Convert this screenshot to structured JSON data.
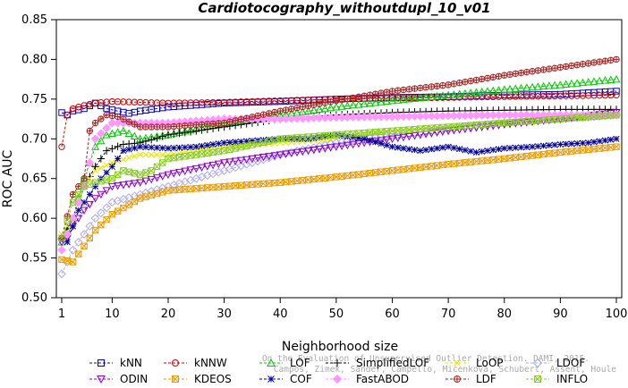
{
  "chart_data": {
    "type": "line",
    "title": "Cardiotocography_withoutdupl_10_v01",
    "xlabel": "Neighborhood size",
    "ylabel": "ROC AUC",
    "xlim": [
      1,
      100
    ],
    "ylim": [
      0.5,
      0.85
    ],
    "xticks": [
      "1",
      "10",
      "20",
      "30",
      "40",
      "50",
      "60",
      "70",
      "80",
      "90",
      "100"
    ],
    "yticks": [
      "0.50",
      "0.55",
      "0.60",
      "0.65",
      "0.70",
      "0.75",
      "0.80",
      "0.85"
    ],
    "grid": false,
    "legend_position": "bottom",
    "watermark": [
      "Campos, Zimek, Sander, Campello, Micenkova, Schubert, Assent, Houle",
      "On the Evaluation of Unsupervised Outlier Detection. DAMI, 2015."
    ],
    "series": [
      {
        "name": "kNN",
        "color": "#0000cc",
        "marker": "square",
        "points": [
          [
            1,
            0.733
          ],
          [
            2,
            0.73
          ],
          [
            3,
            0.735
          ],
          [
            5,
            0.738
          ],
          [
            7,
            0.745
          ],
          [
            9,
            0.738
          ],
          [
            11,
            0.735
          ],
          [
            13,
            0.732
          ],
          [
            15,
            0.735
          ],
          [
            20,
            0.74
          ],
          [
            30,
            0.745
          ],
          [
            40,
            0.747
          ],
          [
            50,
            0.75
          ],
          [
            60,
            0.752
          ],
          [
            70,
            0.753
          ],
          [
            80,
            0.755
          ],
          [
            90,
            0.756
          ],
          [
            100,
            0.76
          ]
        ]
      },
      {
        "name": "kNNW",
        "color": "#cc0000",
        "marker": "circle",
        "points": [
          [
            1,
            0.69
          ],
          [
            2,
            0.73
          ],
          [
            3,
            0.738
          ],
          [
            5,
            0.742
          ],
          [
            7,
            0.745
          ],
          [
            10,
            0.747
          ],
          [
            15,
            0.746
          ],
          [
            20,
            0.745
          ],
          [
            30,
            0.746
          ],
          [
            40,
            0.748
          ],
          [
            50,
            0.75
          ],
          [
            60,
            0.751
          ],
          [
            70,
            0.752
          ],
          [
            80,
            0.753
          ],
          [
            90,
            0.754
          ],
          [
            100,
            0.755
          ]
        ]
      },
      {
        "name": "LOF",
        "color": "#00cc00",
        "marker": "triangle-up",
        "points": [
          [
            1,
            0.57
          ],
          [
            3,
            0.6
          ],
          [
            5,
            0.65
          ],
          [
            7,
            0.69
          ],
          [
            9,
            0.705
          ],
          [
            12,
            0.71
          ],
          [
            15,
            0.7
          ],
          [
            20,
            0.705
          ],
          [
            30,
            0.72
          ],
          [
            40,
            0.73
          ],
          [
            50,
            0.74
          ],
          [
            60,
            0.748
          ],
          [
            70,
            0.755
          ],
          [
            80,
            0.762
          ],
          [
            90,
            0.768
          ],
          [
            100,
            0.775
          ]
        ]
      },
      {
        "name": "SimplifiedLOF",
        "color": "#000000",
        "marker": "plus",
        "points": [
          [
            1,
            0.575
          ],
          [
            3,
            0.6
          ],
          [
            5,
            0.64
          ],
          [
            7,
            0.665
          ],
          [
            9,
            0.685
          ],
          [
            12,
            0.693
          ],
          [
            15,
            0.695
          ],
          [
            20,
            0.705
          ],
          [
            30,
            0.715
          ],
          [
            40,
            0.725
          ],
          [
            50,
            0.73
          ],
          [
            60,
            0.733
          ],
          [
            70,
            0.735
          ],
          [
            80,
            0.736
          ],
          [
            90,
            0.737
          ],
          [
            100,
            0.737
          ]
        ]
      },
      {
        "name": "LoOP",
        "color": "#e6e600",
        "marker": "x",
        "points": [
          [
            1,
            0.58
          ],
          [
            3,
            0.6
          ],
          [
            5,
            0.64
          ],
          [
            7,
            0.66
          ],
          [
            10,
            0.67
          ],
          [
            15,
            0.68
          ],
          [
            20,
            0.68
          ],
          [
            30,
            0.69
          ],
          [
            40,
            0.695
          ],
          [
            50,
            0.7
          ],
          [
            60,
            0.71
          ],
          [
            70,
            0.715
          ],
          [
            80,
            0.72
          ],
          [
            90,
            0.725
          ],
          [
            100,
            0.73
          ]
        ]
      },
      {
        "name": "LDOF",
        "color": "#aaaaee",
        "marker": "diamond",
        "points": [
          [
            1,
            0.53
          ],
          [
            3,
            0.56
          ],
          [
            5,
            0.58
          ],
          [
            7,
            0.6
          ],
          [
            10,
            0.62
          ],
          [
            15,
            0.63
          ],
          [
            20,
            0.64
          ],
          [
            30,
            0.66
          ],
          [
            40,
            0.68
          ],
          [
            50,
            0.695
          ],
          [
            60,
            0.705
          ],
          [
            70,
            0.712
          ],
          [
            80,
            0.72
          ],
          [
            90,
            0.725
          ],
          [
            100,
            0.73
          ]
        ]
      },
      {
        "name": "ODIN",
        "color": "#8800cc",
        "marker": "triangle-down",
        "points": [
          [
            1,
            0.57
          ],
          [
            2,
            0.575
          ],
          [
            3,
            0.59
          ],
          [
            5,
            0.61
          ],
          [
            7,
            0.625
          ],
          [
            10,
            0.64
          ],
          [
            15,
            0.645
          ],
          [
            20,
            0.655
          ],
          [
            30,
            0.67
          ],
          [
            40,
            0.68
          ],
          [
            50,
            0.69
          ],
          [
            60,
            0.7
          ],
          [
            70,
            0.71
          ],
          [
            80,
            0.718
          ],
          [
            90,
            0.725
          ],
          [
            100,
            0.733
          ]
        ]
      },
      {
        "name": "KDEOS",
        "color": "#ee9900",
        "marker": "square-x",
        "points": [
          [
            1,
            0.548
          ],
          [
            3,
            0.545
          ],
          [
            5,
            0.565
          ],
          [
            7,
            0.585
          ],
          [
            10,
            0.605
          ],
          [
            15,
            0.625
          ],
          [
            20,
            0.635
          ],
          [
            30,
            0.64
          ],
          [
            40,
            0.645
          ],
          [
            50,
            0.652
          ],
          [
            60,
            0.66
          ],
          [
            70,
            0.668
          ],
          [
            80,
            0.675
          ],
          [
            90,
            0.683
          ],
          [
            100,
            0.69
          ]
        ]
      },
      {
        "name": "COF",
        "color": "#000099",
        "marker": "asterisk",
        "points": [
          [
            1,
            0.575
          ],
          [
            2,
            0.57
          ],
          [
            4,
            0.61
          ],
          [
            6,
            0.63
          ],
          [
            8,
            0.65
          ],
          [
            10,
            0.665
          ],
          [
            12,
            0.685
          ],
          [
            15,
            0.69
          ],
          [
            20,
            0.688
          ],
          [
            25,
            0.69
          ],
          [
            30,
            0.695
          ],
          [
            40,
            0.7
          ],
          [
            45,
            0.7
          ],
          [
            50,
            0.705
          ],
          [
            55,
            0.7
          ],
          [
            60,
            0.69
          ],
          [
            65,
            0.685
          ],
          [
            70,
            0.69
          ],
          [
            75,
            0.683
          ],
          [
            80,
            0.688
          ],
          [
            85,
            0.69
          ],
          [
            90,
            0.693
          ],
          [
            95,
            0.695
          ],
          [
            100,
            0.7
          ]
        ]
      },
      {
        "name": "FastABOD",
        "color": "#ff99ff",
        "marker": "diamond-filled",
        "points": [
          [
            1,
            0.56
          ],
          [
            3,
            0.6
          ],
          [
            5,
            0.64
          ],
          [
            7,
            0.7
          ],
          [
            10,
            0.72
          ],
          [
            15,
            0.72
          ],
          [
            20,
            0.72
          ],
          [
            30,
            0.725
          ],
          [
            40,
            0.725
          ],
          [
            50,
            0.727
          ],
          [
            60,
            0.728
          ],
          [
            70,
            0.729
          ],
          [
            80,
            0.73
          ],
          [
            90,
            0.73
          ],
          [
            100,
            0.73
          ]
        ]
      },
      {
        "name": "LDF",
        "color": "#aa2222",
        "marker": "circle-plus",
        "points": [
          [
            1,
            0.575
          ],
          [
            3,
            0.63
          ],
          [
            5,
            0.65
          ],
          [
            6,
            0.71
          ],
          [
            7,
            0.72
          ],
          [
            9,
            0.73
          ],
          [
            11,
            0.728
          ],
          [
            15,
            0.715
          ],
          [
            20,
            0.715
          ],
          [
            30,
            0.72
          ],
          [
            40,
            0.735
          ],
          [
            50,
            0.748
          ],
          [
            60,
            0.76
          ],
          [
            70,
            0.768
          ],
          [
            80,
            0.78
          ],
          [
            90,
            0.79
          ],
          [
            100,
            0.8
          ]
        ]
      },
      {
        "name": "INFLO",
        "color": "#88cc22",
        "marker": "square-x",
        "points": [
          [
            1,
            0.575
          ],
          [
            3,
            0.62
          ],
          [
            5,
            0.64
          ],
          [
            7,
            0.645
          ],
          [
            10,
            0.65
          ],
          [
            12,
            0.66
          ],
          [
            15,
            0.655
          ],
          [
            17,
            0.66
          ],
          [
            20,
            0.675
          ],
          [
            25,
            0.68
          ],
          [
            30,
            0.685
          ],
          [
            40,
            0.7
          ],
          [
            50,
            0.705
          ],
          [
            60,
            0.71
          ],
          [
            70,
            0.715
          ],
          [
            80,
            0.72
          ],
          [
            90,
            0.725
          ],
          [
            100,
            0.73
          ]
        ]
      }
    ]
  }
}
